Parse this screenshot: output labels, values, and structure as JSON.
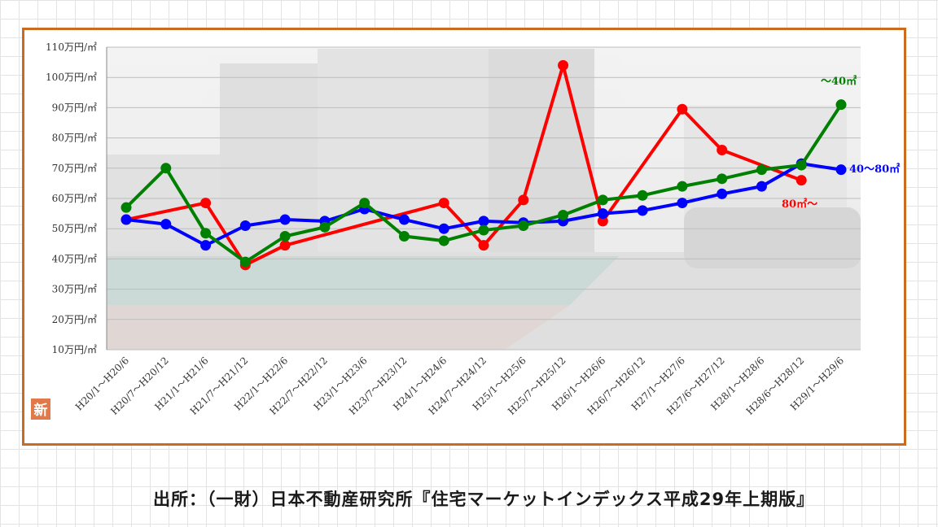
{
  "source_caption": "出所：（一財）日本不動産研究所『住宅マーケットインデックス平成29年上期版』",
  "badge_text": "新",
  "colors": {
    "frame": "#cc6a1e",
    "badge": "#e07a4a",
    "small": "#008000",
    "medium": "#0000ff",
    "large": "#ff0000"
  },
  "chart_data": {
    "type": "line",
    "title": "",
    "xlabel": "",
    "ylabel": "",
    "ylim": [
      10,
      110
    ],
    "y_tick_labels": [
      "10万円/㎡",
      "20万円/㎡",
      "30万円/㎡",
      "40万円/㎡",
      "50万円/㎡",
      "60万円/㎡",
      "70万円/㎡",
      "80万円/㎡",
      "90万円/㎡",
      "100万円/㎡",
      "110万円/㎡"
    ],
    "y_tick_values": [
      10,
      20,
      30,
      40,
      50,
      60,
      70,
      80,
      90,
      100,
      110
    ],
    "grid": true,
    "categories": [
      "H20/1～H20/6",
      "H20/7～H20/12",
      "H21/1～H21/6",
      "H21/7～H21/12",
      "H22/1～H22/6",
      "H22/7～H22/12",
      "H23/1～H23/6",
      "H23/7～H23/12",
      "H24/1～H24/6",
      "H24/7～H24/12",
      "H25/1～H25/6",
      "H25/7～H25/12",
      "H26/1～H26/6",
      "H26/7～H26/12",
      "H27/1～H27/6",
      "H27/6～H27/12",
      "H28/1～H28/6",
      "H28/6～H28/12",
      "H29/1～H29/6"
    ],
    "series": [
      {
        "name": "40～80㎡",
        "color": "#0000ff",
        "values": [
          53,
          51.5,
          44.5,
          51,
          53,
          52.5,
          56.5,
          53,
          50,
          52.5,
          52,
          52.5,
          55,
          56,
          58.5,
          61.5,
          64,
          71.5,
          69.5
        ]
      },
      {
        "name": "80㎡～",
        "color": "#ff0000",
        "values": [
          53,
          null,
          58.5,
          38,
          44.5,
          null,
          null,
          null,
          58.5,
          44.5,
          59.5,
          104,
          52.5,
          null,
          89.5,
          76,
          null,
          66,
          null
        ]
      },
      {
        "name": "～40㎡",
        "color": "#008000",
        "values": [
          57,
          70,
          48.5,
          39,
          47.5,
          50.5,
          58.5,
          47.5,
          46,
          49.5,
          51,
          54.5,
          59.5,
          61,
          64,
          66.5,
          69.5,
          71,
          91
        ]
      }
    ]
  }
}
